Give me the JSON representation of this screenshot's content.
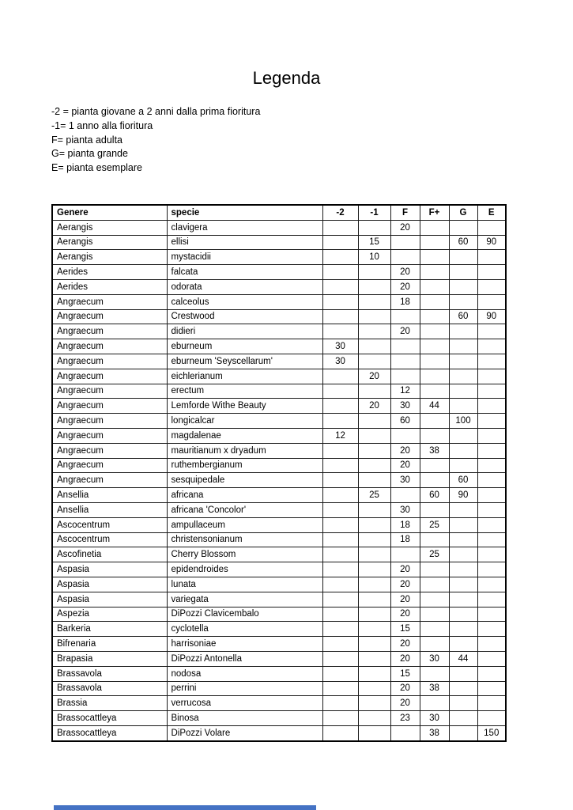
{
  "page": {
    "title": "Legenda",
    "legend_lines": [
      "-2 = pianta giovane a 2 anni dalla prima fioritura",
      "-1= 1 anno alla fioritura",
      "F= pianta adulta",
      "G= pianta grande",
      "E= pianta esemplare"
    ]
  },
  "table": {
    "columns": [
      "Genere",
      "specie",
      "-2",
      "-1",
      "F",
      "F+",
      "G",
      "E"
    ],
    "rows": [
      [
        "Aerangis",
        "clavigera",
        "",
        "",
        "20",
        "",
        "",
        ""
      ],
      [
        "Aerangis",
        "ellisi",
        "",
        "15",
        "",
        "",
        "60",
        "90"
      ],
      [
        "Aerangis",
        "mystacidii",
        "",
        "10",
        "",
        "",
        "",
        ""
      ],
      [
        "Aerides",
        "falcata",
        "",
        "",
        "20",
        "",
        "",
        ""
      ],
      [
        "Aerides",
        "odorata",
        "",
        "",
        "20",
        "",
        "",
        ""
      ],
      [
        "Angraecum",
        "calceolus",
        "",
        "",
        "18",
        "",
        "",
        ""
      ],
      [
        "Angraecum",
        "Crestwood",
        "",
        "",
        "",
        "",
        "60",
        "90"
      ],
      [
        "Angraecum",
        "didieri",
        "",
        "",
        "20",
        "",
        "",
        ""
      ],
      [
        "Angraecum",
        "eburneum",
        "30",
        "",
        "",
        "",
        "",
        ""
      ],
      [
        "Angraecum",
        "eburneum 'Seyscellarum'",
        "30",
        "",
        "",
        "",
        "",
        ""
      ],
      [
        "Angraecum",
        "eichlerianum",
        "",
        "20",
        "",
        "",
        "",
        ""
      ],
      [
        "Angraecum",
        "erectum",
        "",
        "",
        "12",
        "",
        "",
        ""
      ],
      [
        "Angraecum",
        "Lemforde Withe Beauty",
        "",
        "20",
        "30",
        "44",
        "",
        ""
      ],
      [
        "Angraecum",
        "longicalcar",
        "",
        "",
        "60",
        "",
        "100",
        ""
      ],
      [
        "Angraecum",
        "magdalenae",
        "12",
        "",
        "",
        "",
        "",
        ""
      ],
      [
        "Angraecum",
        "mauritianum x dryadum",
        "",
        "",
        "20",
        "38",
        "",
        ""
      ],
      [
        "Angraecum",
        "ruthembergianum",
        "",
        "",
        "20",
        "",
        "",
        ""
      ],
      [
        "Angraecum",
        "sesquipedale",
        "",
        "",
        "30",
        "",
        "60",
        ""
      ],
      [
        "Ansellia",
        "africana",
        "",
        "25",
        "",
        "60",
        "90",
        ""
      ],
      [
        "Ansellia",
        "africana 'Concolor'",
        "",
        "",
        "30",
        "",
        "",
        ""
      ],
      [
        "Ascocentrum",
        "ampullaceum",
        "",
        "",
        "18",
        "25",
        "",
        ""
      ],
      [
        "Ascocentrum",
        "christensonianum",
        "",
        "",
        "18",
        "",
        "",
        ""
      ],
      [
        "Ascofinetia",
        "Cherry Blossom",
        "",
        "",
        "",
        "25",
        "",
        ""
      ],
      [
        "Aspasia",
        "epidendroides",
        "",
        "",
        "20",
        "",
        "",
        ""
      ],
      [
        "Aspasia",
        "lunata",
        "",
        "",
        "20",
        "",
        "",
        ""
      ],
      [
        "Aspasia",
        "variegata",
        "",
        "",
        "20",
        "",
        "",
        ""
      ],
      [
        "Aspezia",
        "DiPozzi Clavicembalo",
        "",
        "",
        "20",
        "",
        "",
        ""
      ],
      [
        "Barkeria",
        "cyclotella",
        "",
        "",
        "15",
        "",
        "",
        ""
      ],
      [
        "Bifrenaria",
        "harrisoniae",
        "",
        "",
        "20",
        "",
        "",
        ""
      ],
      [
        "Brapasia",
        "DiPozzi Antonella",
        "",
        "",
        "20",
        "30",
        "44",
        ""
      ],
      [
        "Brassavola",
        "nodosa",
        "",
        "",
        "15",
        "",
        "",
        ""
      ],
      [
        "Brassavola",
        "perrini",
        "",
        "",
        "20",
        "38",
        "",
        ""
      ],
      [
        "Brassia",
        "verrucosa",
        "",
        "",
        "20",
        "",
        "",
        ""
      ],
      [
        "Brassocattleya",
        "Binosa",
        "",
        "",
        "23",
        "30",
        "",
        ""
      ],
      [
        "Brassocattleya",
        "DiPozzi Volare",
        "",
        "",
        "",
        "38",
        "",
        "150"
      ]
    ]
  },
  "footer": {
    "bar_color": "#4472c4"
  }
}
